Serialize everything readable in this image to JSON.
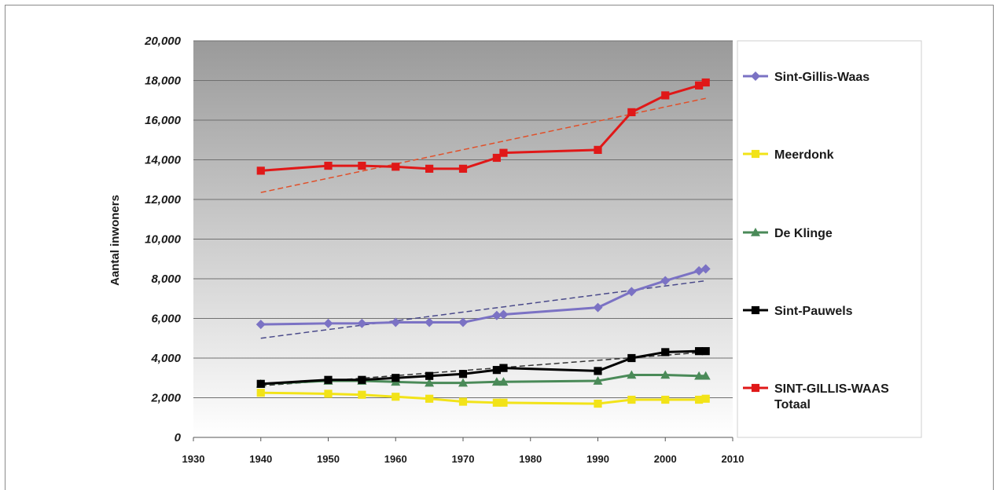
{
  "chart_data": {
    "type": "line",
    "title": "",
    "xlabel": "",
    "ylabel": "Aantal inwoners",
    "xlim": [
      1930,
      2010
    ],
    "ylim": [
      0,
      20000
    ],
    "x_ticks": [
      "1930",
      "1940",
      "1950",
      "1960",
      "1970",
      "1980",
      "1990",
      "2000",
      "2010"
    ],
    "y_ticks": [
      "0",
      "2,000",
      "4,000",
      "6,000",
      "8,000",
      "10,000",
      "12,000",
      "14,000",
      "16,000",
      "18,000",
      "20,000"
    ],
    "grid": "horizontal",
    "legend_position": "right",
    "background": "gradient grey to white",
    "x": [
      1940,
      1950,
      1955,
      1960,
      1965,
      1970,
      1975,
      1976,
      1990,
      1995,
      2000,
      2005,
      2006
    ],
    "series": [
      {
        "name": "Sint-Gillis-Waas",
        "color": "#7b72c4",
        "marker": "diamond",
        "values": [
          5700,
          5750,
          5750,
          5800,
          5800,
          5800,
          6150,
          6200,
          6550,
          7350,
          7900,
          8400,
          8500
        ],
        "trend": {
          "x": [
            1940,
            2006
          ],
          "y": [
            5000,
            7900
          ]
        }
      },
      {
        "name": "Meerdonk",
        "color": "#f2e318",
        "marker": "square",
        "values": [
          2250,
          2200,
          2150,
          2050,
          1950,
          1800,
          1750,
          1750,
          1700,
          1900,
          1900,
          1900,
          1950
        ],
        "trend": null
      },
      {
        "name": "De Klinge",
        "color": "#4a8a58",
        "marker": "triangle",
        "values": [
          2700,
          2850,
          2850,
          2800,
          2750,
          2750,
          2800,
          2800,
          2850,
          3150,
          3150,
          3100,
          3100
        ],
        "trend": null
      },
      {
        "name": "Sint-Pauwels",
        "color": "#000000",
        "marker": "square",
        "values": [
          2700,
          2900,
          2900,
          3000,
          3100,
          3200,
          3400,
          3500,
          3350,
          4000,
          4300,
          4350,
          4350
        ],
        "trend": {
          "x": [
            1940,
            2006
          ],
          "y": [
            2600,
            4300
          ]
        }
      },
      {
        "name": "SINT-GILLIS-WAAS Totaal",
        "legend_lines": [
          "SINT-GILLIS-WAAS",
          "Totaal"
        ],
        "color": "#e01818",
        "marker": "square",
        "values": [
          13450,
          13700,
          13700,
          13650,
          13550,
          13550,
          14100,
          14350,
          14500,
          16400,
          17250,
          17750,
          17900
        ],
        "trend": {
          "x": [
            1940,
            2006
          ],
          "y": [
            12350,
            17100
          ]
        }
      }
    ]
  }
}
